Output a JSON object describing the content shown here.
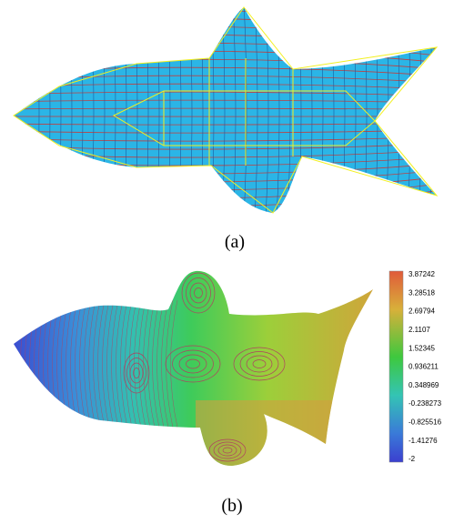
{
  "panels": [
    {
      "caption": "(a)"
    },
    {
      "caption": "(b)",
      "colorbar": {
        "ticks": [
          "3.87242",
          "3.28518",
          "2.69794",
          "2.1107",
          "1.52345",
          "0.936211",
          "0.348969",
          "-0.238273",
          "-0.825516",
          "-1.41276",
          "-2"
        ]
      }
    }
  ]
}
